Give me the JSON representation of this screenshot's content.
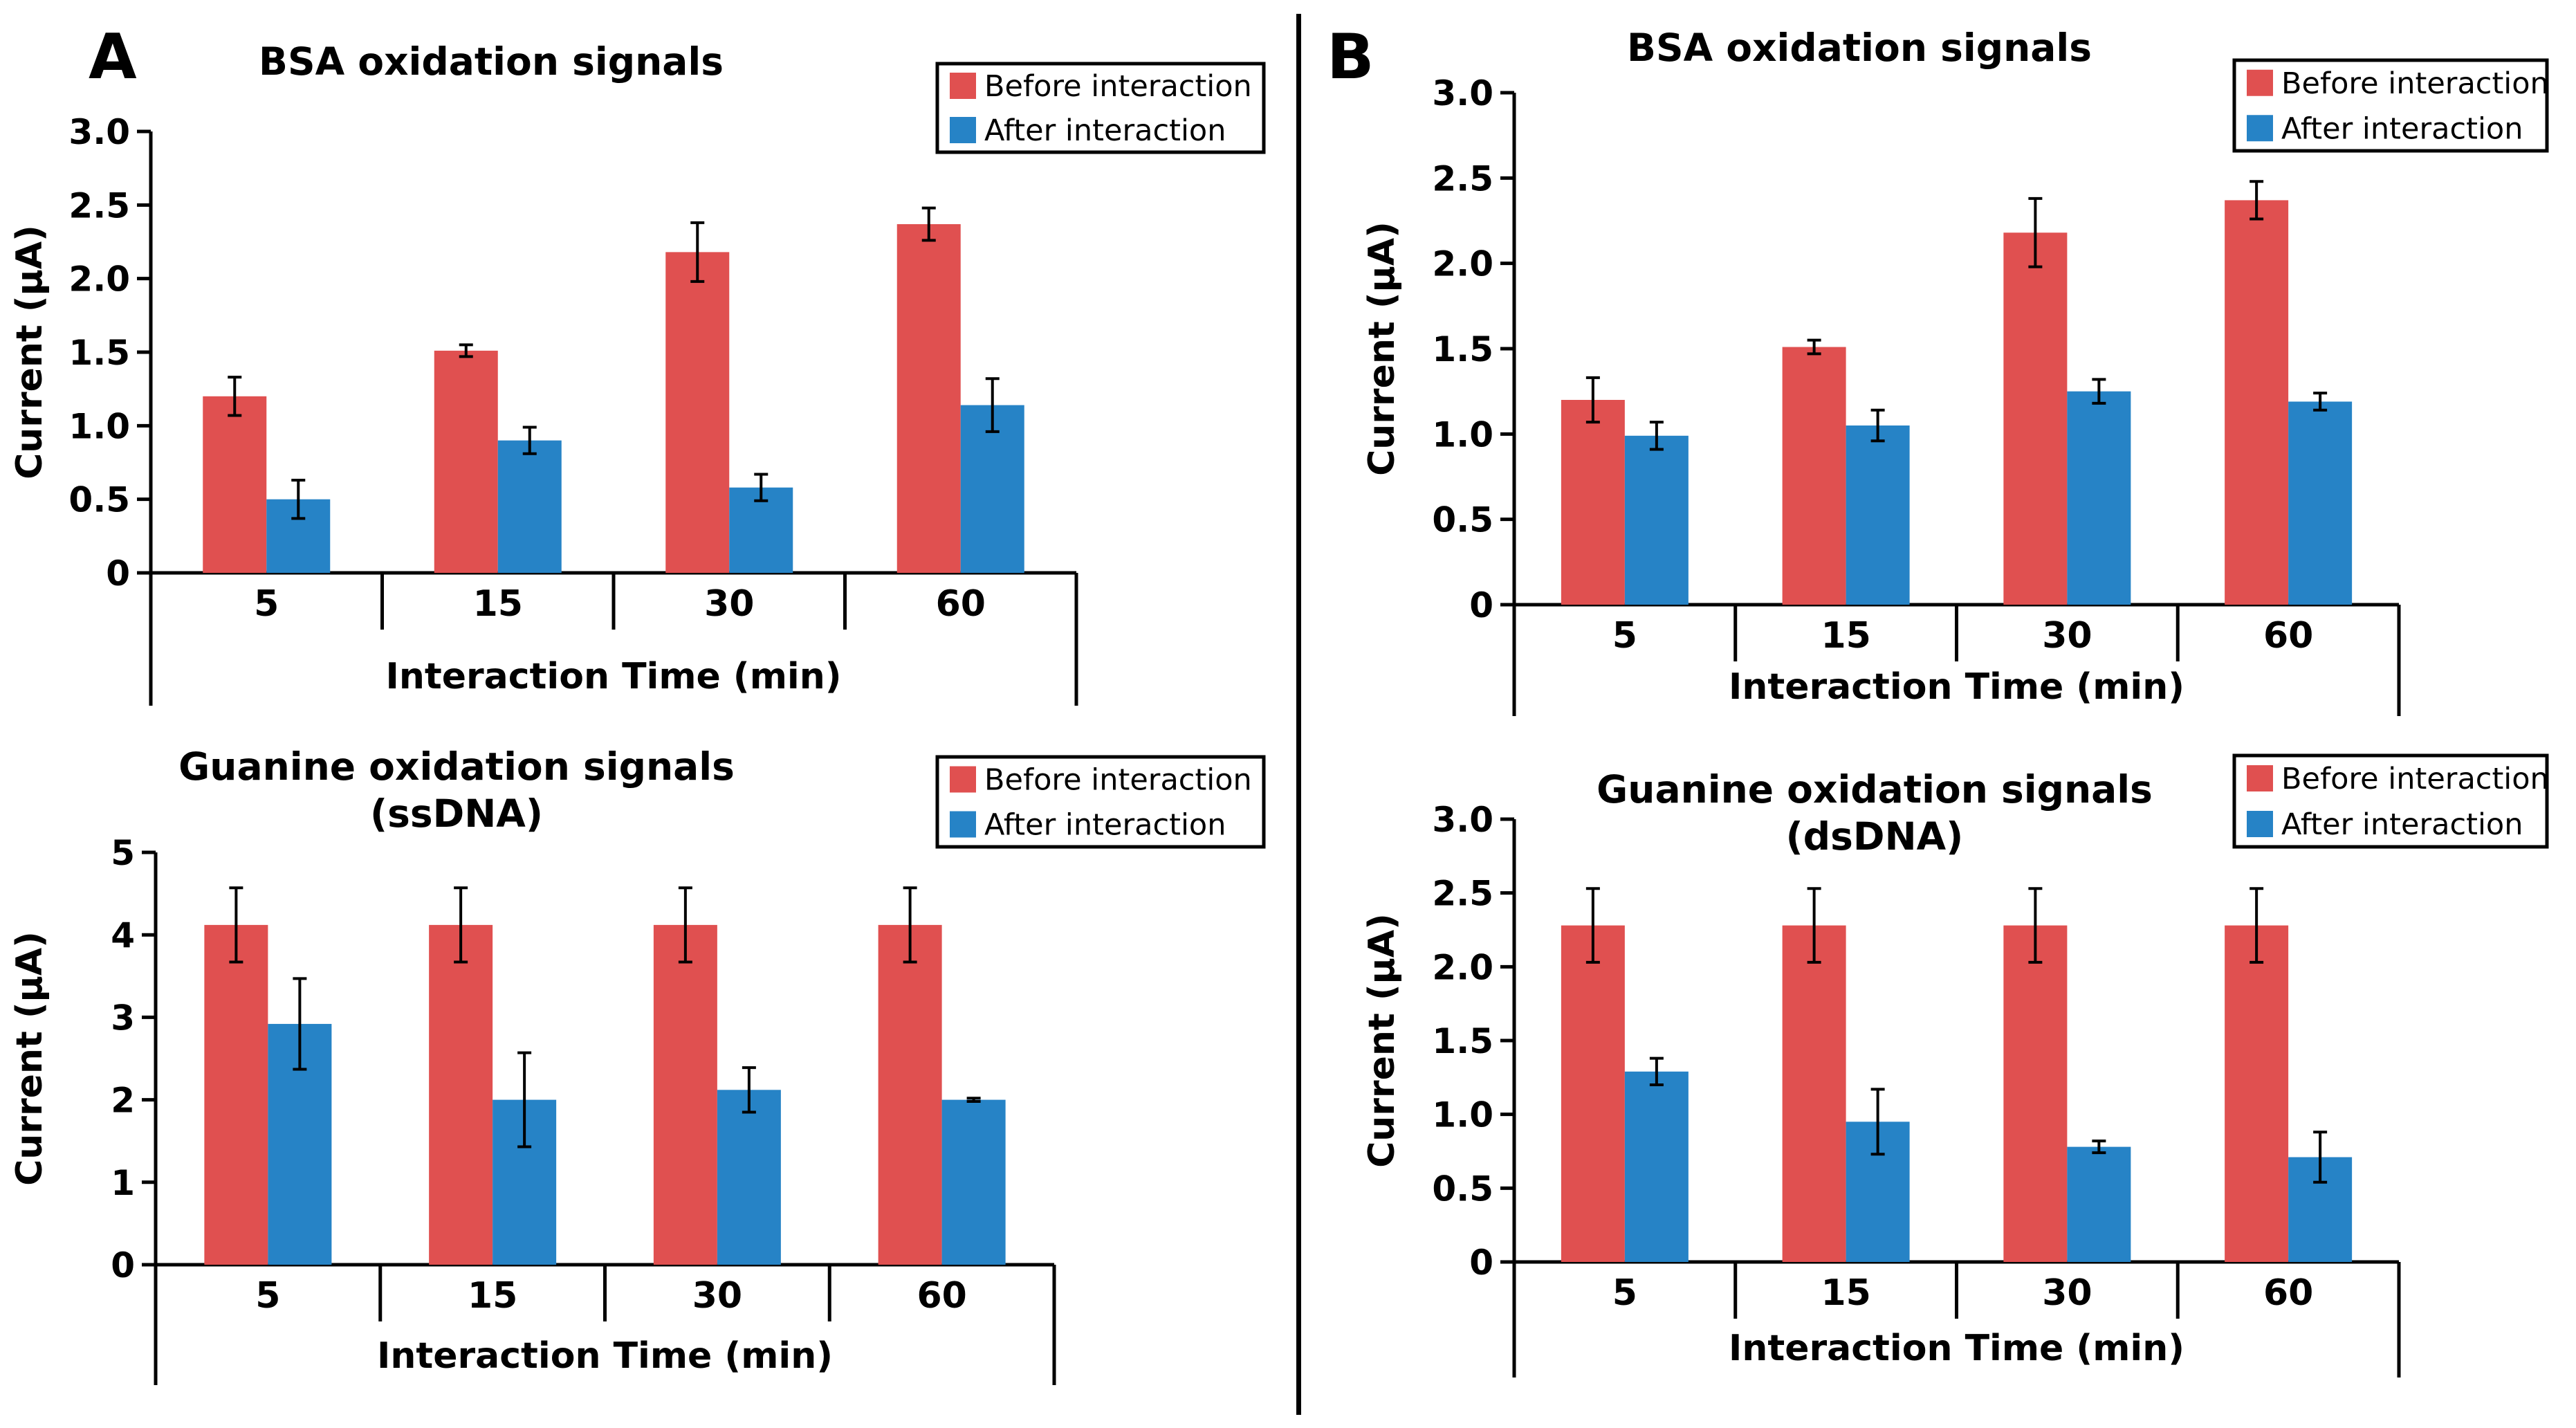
{
  "panel_labels": [
    "A",
    "B"
  ],
  "colors": {
    "before": "#e05050",
    "after": "#2683c6",
    "text": "#000000"
  },
  "chart_data": [
    {
      "type": "bar",
      "panel": "A",
      "title": [
        "BSA oxidation signals"
      ],
      "xlabel": "Interaction Time (min)",
      "ylabel": "Current (µA)",
      "categories": [
        "5",
        "15",
        "30",
        "60"
      ],
      "ylim": [
        0,
        3
      ],
      "ytick_labels": [
        "0",
        "0.5",
        "1.0",
        "1.5",
        "2.0",
        "2.5",
        "3.0"
      ],
      "legend": [
        "Before interaction",
        "After interaction"
      ],
      "series": [
        {
          "name": "Before interaction",
          "values": [
            1.2,
            1.51,
            2.18,
            2.37
          ],
          "errors": [
            0.13,
            0.04,
            0.2,
            0.11
          ]
        },
        {
          "name": "After interaction",
          "values": [
            0.5,
            0.9,
            0.58,
            1.14
          ],
          "errors": [
            0.13,
            0.09,
            0.09,
            0.18
          ]
        }
      ]
    },
    {
      "type": "bar",
      "panel": "A",
      "title": [
        "Guanine oxidation signals",
        "(ssDNA)"
      ],
      "xlabel": "Interaction Time (min)",
      "ylabel": "Current (µA)",
      "categories": [
        "5",
        "15",
        "30",
        "60"
      ],
      "ylim": [
        0,
        5
      ],
      "ytick_labels": [
        "0",
        "1",
        "2",
        "3",
        "4",
        "5"
      ],
      "legend": [
        "Before interaction",
        "After interaction"
      ],
      "series": [
        {
          "name": "Before interaction",
          "values": [
            4.12,
            4.12,
            4.12,
            4.12
          ],
          "errors": [
            0.45,
            0.45,
            0.45,
            0.45
          ]
        },
        {
          "name": "After interaction",
          "values": [
            2.92,
            2.0,
            2.12,
            2.0
          ],
          "errors": [
            0.55,
            0.57,
            0.27,
            0.02
          ]
        }
      ]
    },
    {
      "type": "bar",
      "panel": "B",
      "title": [
        "BSA oxidation signals"
      ],
      "xlabel": "Interaction Time (min)",
      "ylabel": "Current (µA)",
      "categories": [
        "5",
        "15",
        "30",
        "60"
      ],
      "ylim": [
        0,
        3
      ],
      "ytick_labels": [
        "0",
        "0.5",
        "1.0",
        "1.5",
        "2.0",
        "2.5",
        "3.0"
      ],
      "legend": [
        "Before interaction",
        "After interaction"
      ],
      "series": [
        {
          "name": "Before interaction",
          "values": [
            1.2,
            1.51,
            2.18,
            2.37
          ],
          "errors": [
            0.13,
            0.04,
            0.2,
            0.11
          ]
        },
        {
          "name": "After interaction",
          "values": [
            0.99,
            1.05,
            1.25,
            1.19
          ],
          "errors": [
            0.08,
            0.09,
            0.07,
            0.05
          ]
        }
      ]
    },
    {
      "type": "bar",
      "panel": "B",
      "title": [
        "Guanine oxidation signals",
        "(dsDNA)"
      ],
      "xlabel": "Interaction Time (min)",
      "ylabel": "Current (µA)",
      "categories": [
        "5",
        "15",
        "30",
        "60"
      ],
      "ylim": [
        0,
        3
      ],
      "ytick_labels": [
        "0",
        "0.5",
        "1.0",
        "1.5",
        "2.0",
        "2.5",
        "3.0"
      ],
      "legend": [
        "Before interaction",
        "After interaction"
      ],
      "series": [
        {
          "name": "Before interaction",
          "values": [
            2.28,
            2.28,
            2.28,
            2.28
          ],
          "errors": [
            0.25,
            0.25,
            0.25,
            0.25
          ]
        },
        {
          "name": "After interaction",
          "values": [
            1.29,
            0.95,
            0.78,
            0.71
          ],
          "errors": [
            0.09,
            0.22,
            0.04,
            0.17
          ]
        }
      ]
    }
  ]
}
